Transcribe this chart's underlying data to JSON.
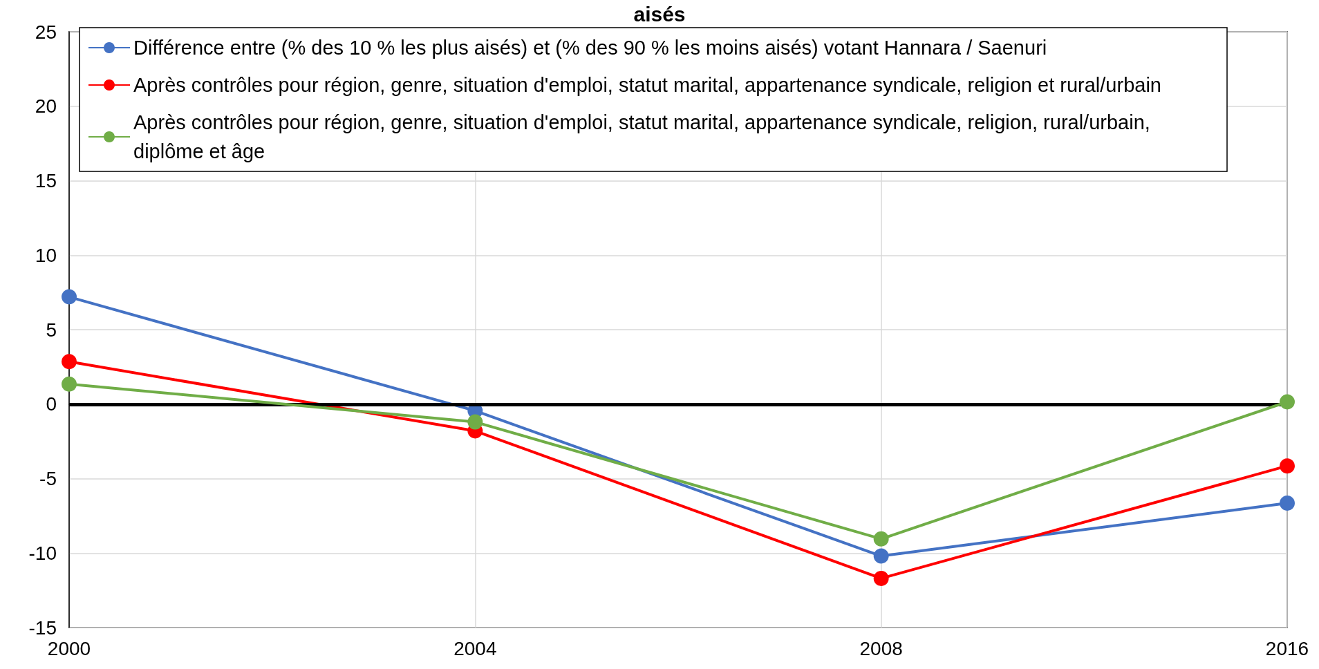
{
  "chart_data": {
    "type": "line",
    "title": "aisés",
    "categories": [
      "2000",
      "2004",
      "2008",
      "2016"
    ],
    "series": [
      {
        "name": "Différence entre (% des 10 % les plus aisés) et (% des 90 % les moins aisés) votant Hannara / Saenuri",
        "color": "#4472c4",
        "values": [
          7.2,
          -0.45,
          -10.2,
          -6.65
        ]
      },
      {
        "name": "Après contrôles pour région, genre, situation d'emploi, statut marital, appartenance syndicale, religion et rural/urbain",
        "color": "#ff0000",
        "values": [
          2.85,
          -1.8,
          -11.7,
          -4.15
        ]
      },
      {
        "name": "Après contrôles pour région, genre, situation d'emploi, statut marital, appartenance syndicale, religion, rural/urbain, diplôme et âge",
        "color": "#70ad47",
        "values": [
          1.35,
          -1.2,
          -9.05,
          0.15
        ]
      }
    ],
    "ylim": [
      -15,
      25
    ],
    "yticks": [
      -15,
      -10,
      -5,
      0,
      5,
      10,
      15,
      20,
      25
    ],
    "grid": true,
    "legend": "top",
    "marker": "circle",
    "line_style": "solid",
    "ref_lines": [
      {
        "axis": "y",
        "value": 0,
        "color": "#000000"
      }
    ]
  }
}
